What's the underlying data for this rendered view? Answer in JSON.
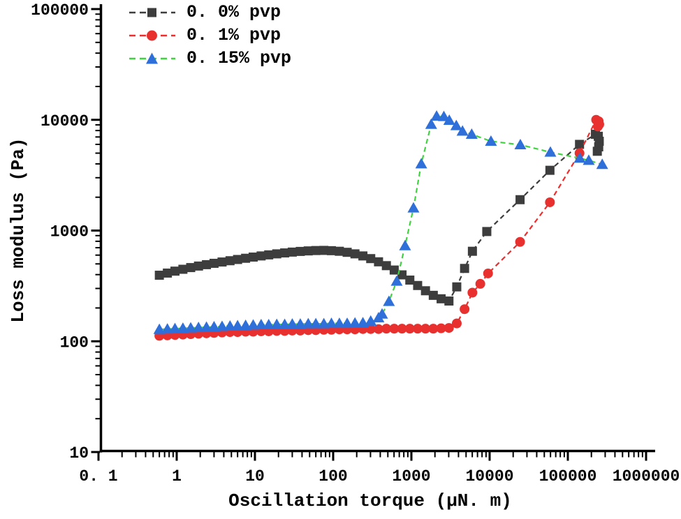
{
  "figure": {
    "background": "#ffffff",
    "axis_color": "#000000",
    "legend_position": "top-left-inside"
  },
  "chart_data": {
    "type": "line",
    "x_scale": "log",
    "y_scale": "log",
    "title": "",
    "xlabel": "Oscillation torque (μN. m)",
    "ylabel": "Loss modulus (Pa)",
    "xlim": [
      0.1,
      1000000
    ],
    "ylim": [
      10,
      100000
    ],
    "grid": false,
    "legend_position": "top-left-inside",
    "x_tick_labels": [
      "0. 1",
      "1",
      "10",
      "100",
      "1000",
      "10000",
      "100000",
      "1000000"
    ],
    "y_tick_labels": [
      "10",
      "100",
      "1000",
      "10000",
      "100000"
    ],
    "series": [
      {
        "name": "0. 0% pvp",
        "marker": "square",
        "marker_color": "#3d3d3d",
        "line_color": "#3d3d3d",
        "points": [
          [
            0.6,
            395
          ],
          [
            0.76,
            413
          ],
          [
            0.95,
            430
          ],
          [
            1.2,
            447
          ],
          [
            1.51,
            463
          ],
          [
            1.9,
            478
          ],
          [
            2.4,
            492
          ],
          [
            3.0,
            506
          ],
          [
            3.8,
            520
          ],
          [
            4.8,
            534
          ],
          [
            6.0,
            548
          ],
          [
            7.6,
            562
          ],
          [
            9.5,
            576
          ],
          [
            12,
            590
          ],
          [
            15,
            603
          ],
          [
            19,
            616
          ],
          [
            24,
            628
          ],
          [
            30,
            639
          ],
          [
            38,
            648
          ],
          [
            48,
            655
          ],
          [
            60,
            660
          ],
          [
            76,
            662
          ],
          [
            95,
            658
          ],
          [
            120,
            650
          ],
          [
            151,
            636
          ],
          [
            190,
            616
          ],
          [
            240,
            590
          ],
          [
            302,
            558
          ],
          [
            380,
            522
          ],
          [
            479,
            482
          ],
          [
            603,
            440
          ],
          [
            759,
            398
          ],
          [
            955,
            357
          ],
          [
            1202,
            319
          ],
          [
            1514,
            286
          ],
          [
            1905,
            260
          ],
          [
            2399,
            242
          ],
          [
            3020,
            231
          ],
          [
            3802,
            310
          ],
          [
            4786,
            455
          ],
          [
            6026,
            650
          ],
          [
            9200,
            980
          ],
          [
            24500,
            1900
          ],
          [
            59000,
            3500
          ],
          [
            141000,
            6000
          ],
          [
            225000,
            7400
          ],
          [
            245000,
            7100
          ],
          [
            252000,
            6400
          ],
          [
            248000,
            5700
          ],
          [
            238000,
            5200
          ]
        ]
      },
      {
        "name": "0. 1% pvp",
        "marker": "circle",
        "marker_color": "#e8302e",
        "line_color": "#ef2d2d",
        "points": [
          [
            0.6,
            112
          ],
          [
            0.76,
            113
          ],
          [
            0.95,
            114
          ],
          [
            1.2,
            115
          ],
          [
            1.51,
            116
          ],
          [
            1.9,
            117
          ],
          [
            2.4,
            118
          ],
          [
            3.0,
            119
          ],
          [
            3.8,
            120
          ],
          [
            4.8,
            121
          ],
          [
            6.0,
            121
          ],
          [
            7.6,
            122
          ],
          [
            9.5,
            122
          ],
          [
            12,
            123
          ],
          [
            15,
            123
          ],
          [
            19,
            124
          ],
          [
            24,
            124
          ],
          [
            30,
            125
          ],
          [
            38,
            125
          ],
          [
            48,
            126
          ],
          [
            60,
            126
          ],
          [
            76,
            127
          ],
          [
            95,
            127
          ],
          [
            120,
            128
          ],
          [
            151,
            128
          ],
          [
            190,
            128
          ],
          [
            240,
            129
          ],
          [
            302,
            129
          ],
          [
            380,
            129
          ],
          [
            479,
            130
          ],
          [
            603,
            130
          ],
          [
            759,
            130
          ],
          [
            955,
            130
          ],
          [
            1202,
            130
          ],
          [
            1514,
            130
          ],
          [
            1905,
            130
          ],
          [
            2399,
            131
          ],
          [
            3020,
            132
          ],
          [
            3802,
            145
          ],
          [
            4786,
            195
          ],
          [
            6026,
            275
          ],
          [
            7600,
            330
          ],
          [
            9550,
            410
          ],
          [
            24500,
            790
          ],
          [
            59000,
            1800
          ],
          [
            141000,
            5000
          ],
          [
            230000,
            10000
          ],
          [
            248000,
            9700
          ],
          [
            252000,
            9100
          ],
          [
            242000,
            8700
          ]
        ]
      },
      {
        "name": "0. 15% pvp",
        "marker": "triangle",
        "marker_color": "#2e6fd9",
        "line_color": "#3fd43f",
        "points": [
          [
            0.6,
            128
          ],
          [
            0.76,
            129
          ],
          [
            0.95,
            130
          ],
          [
            1.2,
            131
          ],
          [
            1.51,
            132
          ],
          [
            1.9,
            133
          ],
          [
            2.4,
            134
          ],
          [
            3.0,
            135
          ],
          [
            3.8,
            136
          ],
          [
            4.8,
            137
          ],
          [
            6.0,
            138
          ],
          [
            7.6,
            139
          ],
          [
            9.5,
            140
          ],
          [
            12,
            141
          ],
          [
            15,
            141
          ],
          [
            19,
            142
          ],
          [
            24,
            142
          ],
          [
            30,
            143
          ],
          [
            38,
            143
          ],
          [
            48,
            144
          ],
          [
            60,
            144
          ],
          [
            76,
            144
          ],
          [
            95,
            145
          ],
          [
            120,
            145
          ],
          [
            151,
            145
          ],
          [
            190,
            146
          ],
          [
            240,
            147
          ],
          [
            302,
            152
          ],
          [
            380,
            163
          ],
          [
            422,
            176
          ],
          [
            516,
            229
          ],
          [
            649,
            349
          ],
          [
            830,
            730
          ],
          [
            1063,
            1600
          ],
          [
            1337,
            4000
          ],
          [
            1790,
            9100
          ],
          [
            2100,
            10800
          ],
          [
            2600,
            10700
          ],
          [
            3050,
            9900
          ],
          [
            3750,
            8850
          ],
          [
            4500,
            7900
          ],
          [
            5900,
            7400
          ],
          [
            10400,
            6400
          ],
          [
            24700,
            5950
          ],
          [
            59800,
            5100
          ],
          [
            142000,
            4500
          ],
          [
            185000,
            4300
          ],
          [
            275000,
            3950
          ]
        ]
      }
    ]
  }
}
